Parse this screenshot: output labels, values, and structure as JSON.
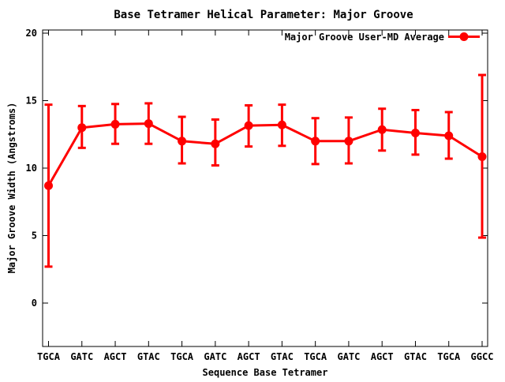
{
  "colors": {
    "series": "#ff0000",
    "axis": "#000000",
    "background": "#ffffff",
    "text": "#000000"
  },
  "chart_data": {
    "type": "line",
    "title": "Base Tetramer Helical Parameter: Major Groove",
    "xlabel": "Sequence Base Tetramer",
    "ylabel": "Major Groove Width (Angstroms)",
    "legend": {
      "label": "Major Groove User-MD Average",
      "position": "top-right-inside",
      "marker": "filled-circle-on-line"
    },
    "grid": false,
    "marker": "filled-circle",
    "error_bars": true,
    "yticks": [
      0,
      5,
      10,
      15,
      20
    ],
    "ylim": [
      -3.2,
      20.2
    ],
    "categories": [
      "TGCA",
      "GATC",
      "AGCT",
      "GTAC",
      "TGCA",
      "GATC",
      "AGCT",
      "GTAC",
      "TGCA",
      "GATC",
      "AGCT",
      "GTAC",
      "TGCA",
      "GGCC"
    ],
    "series": [
      {
        "name": "Major Groove User-MD Average",
        "color": "#ff0000",
        "values": [
          8.7,
          13.0,
          13.25,
          13.3,
          12.0,
          11.8,
          13.15,
          13.2,
          12.0,
          12.0,
          12.85,
          12.6,
          12.4,
          10.85
        ],
        "error_low": [
          2.7,
          11.5,
          11.8,
          11.8,
          10.35,
          10.2,
          11.6,
          11.65,
          10.3,
          10.35,
          11.3,
          11.0,
          10.7,
          4.85
        ],
        "error_high": [
          14.7,
          14.6,
          14.75,
          14.8,
          13.8,
          13.6,
          14.65,
          14.7,
          13.7,
          13.75,
          14.4,
          14.3,
          14.15,
          16.9
        ]
      }
    ]
  }
}
